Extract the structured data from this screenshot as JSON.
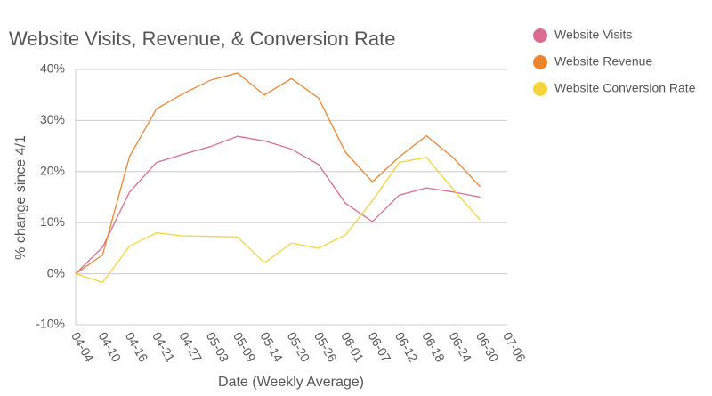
{
  "chart_data": {
    "type": "line",
    "title": "Website Visits, Revenue, & Conversion Rate",
    "x_label": "Date (Weekly Average)",
    "y_label": "% change since 4/1",
    "categories": [
      "04-04",
      "04-10",
      "04-16",
      "04-21",
      "04-27",
      "05-03",
      "05-09",
      "05-14",
      "05-20",
      "05-26",
      "06-01",
      "06-07",
      "06-12",
      "06-18",
      "06-24",
      "06-30",
      "07-06"
    ],
    "series": [
      {
        "name": "Website Visits",
        "color": "#dc6b92",
        "values": [
          0,
          5.2,
          16,
          21.8,
          23.4,
          24.9,
          26.9,
          26,
          24.4,
          21.4,
          13.8,
          10.2,
          15.4,
          16.8,
          16,
          15,
          null
        ]
      },
      {
        "name": "Website Revenue",
        "color": "#f0842c",
        "values": [
          0,
          3.7,
          23,
          32.3,
          35.3,
          37.9,
          39.3,
          35,
          38.2,
          34.4,
          23.8,
          18,
          22.9,
          27,
          22.7,
          17,
          null
        ]
      },
      {
        "name": "Website Conversion Rate",
        "color": "#f7d33a",
        "values": [
          0,
          -1.7,
          5.4,
          8,
          7.4,
          7.3,
          7.2,
          2.1,
          6,
          5,
          7.6,
          14.3,
          21.8,
          22.8,
          16.5,
          10.5,
          null
        ]
      }
    ],
    "ylim": [
      -10,
      40
    ],
    "yticks": [
      {
        "value": -10,
        "label": "-10%"
      },
      {
        "value": 0,
        "label": "0%"
      },
      {
        "value": 10,
        "label": "10%"
      },
      {
        "value": 20,
        "label": "20%"
      },
      {
        "value": 30,
        "label": "30%"
      },
      {
        "value": 40,
        "label": "40%"
      }
    ],
    "grid": true,
    "legend": "right"
  }
}
